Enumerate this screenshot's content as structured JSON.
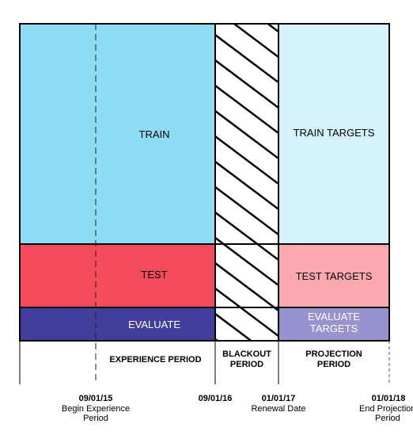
{
  "blocks": {
    "train": "TRAIN",
    "train_targets": "TRAIN TARGETS",
    "test": "TEST",
    "test_targets": "TEST TARGETS",
    "evaluate": "EVALUATE",
    "evaluate_targets_line1": "EVALUATE",
    "evaluate_targets_line2": "TARGETS"
  },
  "periods": {
    "experience": "EXPERIENCE PERIOD",
    "blackout_line1": "BLACKOUT",
    "blackout_line2": "PERIOD",
    "projection_line1": "PROJECTION",
    "projection_line2": "PERIOD"
  },
  "timeline": [
    {
      "date": "09/01/15",
      "line1": "Begin Experience",
      "line2": "Period"
    },
    {
      "date": "09/01/16",
      "line1": "",
      "line2": ""
    },
    {
      "date": "01/01/17",
      "line1": "Renewal Date",
      "line2": ""
    },
    {
      "date": "01/01/18",
      "line1": "End Projection",
      "line2": "Period"
    }
  ],
  "colors": {
    "train": "#8fdcf5",
    "train_targets": "#d4f1fc",
    "test": "#f64a5d",
    "test_targets": "#fba8b1",
    "evaluate": "#433d9c",
    "evaluate_targets": "#9693ce",
    "blackout_fill": "#ffffff"
  }
}
